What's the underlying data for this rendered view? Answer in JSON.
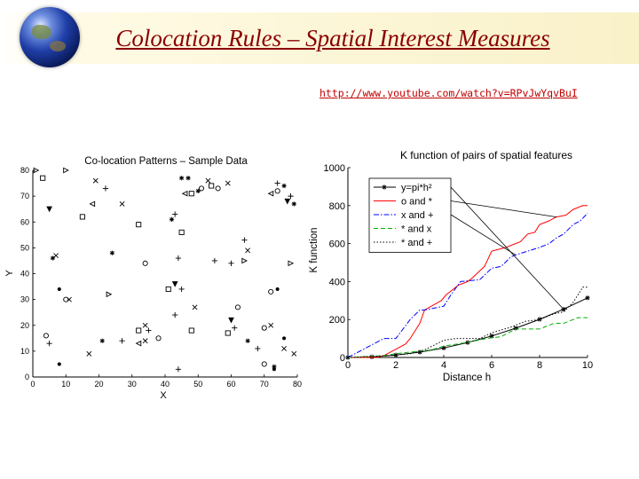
{
  "slide": {
    "title": "Colocation Rules – Spatial Interest Measures",
    "url": "http://www.youtube.com/watch?v=RPvJwYqvBuI"
  },
  "colors": {
    "title": "#8b0000",
    "link": "#c00000",
    "header_fade": "#f9f1c8"
  },
  "chart_data": [
    {
      "type": "scatter",
      "title": "Co-location Patterns – Sample Data",
      "xlabel": "X",
      "ylabel": "Y",
      "xlim": [
        0,
        80
      ],
      "ylim": [
        0,
        80
      ],
      "xticks": [
        "0",
        "10",
        "20",
        "30",
        "40",
        "50",
        "60",
        "70",
        "80"
      ],
      "yticks": [
        "0",
        "10",
        "20",
        "30",
        "40",
        "50",
        "60",
        "70",
        "80"
      ],
      "points": [
        {
          "x": 1,
          "y": 80,
          "m": "tri-r"
        },
        {
          "x": 3,
          "y": 77,
          "m": "sq"
        },
        {
          "x": 10,
          "y": 80,
          "m": "tri-r"
        },
        {
          "x": 5,
          "y": 65,
          "m": "tri-d"
        },
        {
          "x": 19,
          "y": 76,
          "m": "x"
        },
        {
          "x": 22,
          "y": 73,
          "m": "plus"
        },
        {
          "x": 18,
          "y": 67,
          "m": "tri-l"
        },
        {
          "x": 27,
          "y": 67,
          "m": "x"
        },
        {
          "x": 15,
          "y": 62,
          "m": "sq"
        },
        {
          "x": 32,
          "y": 59,
          "m": "sq"
        },
        {
          "x": 45,
          "y": 77,
          "m": "star"
        },
        {
          "x": 47,
          "y": 77,
          "m": "star"
        },
        {
          "x": 46,
          "y": 71,
          "m": "tri-l"
        },
        {
          "x": 48,
          "y": 71,
          "m": "sq"
        },
        {
          "x": 50,
          "y": 72,
          "m": "star"
        },
        {
          "x": 51,
          "y": 73,
          "m": "circ"
        },
        {
          "x": 56,
          "y": 73,
          "m": "circ"
        },
        {
          "x": 59,
          "y": 75,
          "m": "x"
        },
        {
          "x": 53,
          "y": 76,
          "m": "x"
        },
        {
          "x": 54,
          "y": 74,
          "m": "sq"
        },
        {
          "x": 74,
          "y": 75,
          "m": "plus"
        },
        {
          "x": 76,
          "y": 74,
          "m": "star"
        },
        {
          "x": 74,
          "y": 72,
          "m": "circ"
        },
        {
          "x": 72,
          "y": 71,
          "m": "tri-l"
        },
        {
          "x": 77,
          "y": 68,
          "m": "tri-d"
        },
        {
          "x": 79,
          "y": 67,
          "m": "star"
        },
        {
          "x": 78,
          "y": 70,
          "m": "plus"
        },
        {
          "x": 42,
          "y": 61,
          "m": "star"
        },
        {
          "x": 43,
          "y": 63,
          "m": "plus"
        },
        {
          "x": 45,
          "y": 56,
          "m": "sq"
        },
        {
          "x": 64,
          "y": 53,
          "m": "plus"
        },
        {
          "x": 65,
          "y": 49,
          "m": "x"
        },
        {
          "x": 60,
          "y": 44,
          "m": "plus"
        },
        {
          "x": 64,
          "y": 45,
          "m": "tri-r"
        },
        {
          "x": 7,
          "y": 47,
          "m": "x"
        },
        {
          "x": 6,
          "y": 46,
          "m": "star"
        },
        {
          "x": 24,
          "y": 48,
          "m": "star"
        },
        {
          "x": 34,
          "y": 44,
          "m": "circ"
        },
        {
          "x": 44,
          "y": 46,
          "m": "plus"
        },
        {
          "x": 55,
          "y": 45,
          "m": "plus"
        },
        {
          "x": 78,
          "y": 44,
          "m": "tri-r"
        },
        {
          "x": 41,
          "y": 34,
          "m": "sq"
        },
        {
          "x": 43,
          "y": 36,
          "m": "tri-d"
        },
        {
          "x": 45,
          "y": 34,
          "m": "plus"
        },
        {
          "x": 8,
          "y": 34,
          "m": "dot"
        },
        {
          "x": 10,
          "y": 30,
          "m": "circ"
        },
        {
          "x": 11,
          "y": 30,
          "m": "x"
        },
        {
          "x": 23,
          "y": 32,
          "m": "tri-r"
        },
        {
          "x": 72,
          "y": 33,
          "m": "circ"
        },
        {
          "x": 74,
          "y": 34,
          "m": "dot"
        },
        {
          "x": 62,
          "y": 27,
          "m": "circ"
        },
        {
          "x": 60,
          "y": 22,
          "m": "tri-d"
        },
        {
          "x": 49,
          "y": 27,
          "m": "x"
        },
        {
          "x": 43,
          "y": 24,
          "m": "plus"
        },
        {
          "x": 34,
          "y": 20,
          "m": "x"
        },
        {
          "x": 32,
          "y": 18,
          "m": "sq"
        },
        {
          "x": 35,
          "y": 18,
          "m": "plus"
        },
        {
          "x": 32,
          "y": 13,
          "m": "tri-l"
        },
        {
          "x": 34,
          "y": 14,
          "m": "x"
        },
        {
          "x": 38,
          "y": 15,
          "m": "circ"
        },
        {
          "x": 48,
          "y": 18,
          "m": "sq"
        },
        {
          "x": 59,
          "y": 17,
          "m": "sq"
        },
        {
          "x": 61,
          "y": 19,
          "m": "plus"
        },
        {
          "x": 70,
          "y": 19,
          "m": "circ"
        },
        {
          "x": 72,
          "y": 20,
          "m": "x"
        },
        {
          "x": 76,
          "y": 15,
          "m": "dot"
        },
        {
          "x": 65,
          "y": 14,
          "m": "star"
        },
        {
          "x": 68,
          "y": 11,
          "m": "plus"
        },
        {
          "x": 4,
          "y": 16,
          "m": "circ"
        },
        {
          "x": 5,
          "y": 13,
          "m": "plus"
        },
        {
          "x": 8,
          "y": 5,
          "m": "dot"
        },
        {
          "x": 17,
          "y": 9,
          "m": "x"
        },
        {
          "x": 21,
          "y": 14,
          "m": "star"
        },
        {
          "x": 27,
          "y": 14,
          "m": "plus"
        },
        {
          "x": 44,
          "y": 3,
          "m": "plus"
        },
        {
          "x": 70,
          "y": 5,
          "m": "circ"
        },
        {
          "x": 73,
          "y": 4,
          "m": "star"
        },
        {
          "x": 76,
          "y": 11,
          "m": "x"
        },
        {
          "x": 79,
          "y": 9,
          "m": "x"
        },
        {
          "x": 73,
          "y": 3,
          "m": "dot"
        }
      ]
    },
    {
      "type": "line",
      "title": "K function of pairs of spatial features",
      "xlabel": "Distance h",
      "ylabel": "K function",
      "xlim": [
        0,
        10
      ],
      "ylim": [
        0,
        1000
      ],
      "xticks": [
        "0",
        "2",
        "4",
        "6",
        "8",
        "10"
      ],
      "yticks": [
        "0",
        "200",
        "400",
        "600",
        "800",
        "1000"
      ],
      "legend_position": "top-left",
      "series": [
        {
          "name": "y=pi*h²",
          "color": "#000000",
          "dash": "solid",
          "marker": "star",
          "x": [
            0,
            1,
            2,
            3,
            4,
            5,
            6,
            7,
            8,
            9,
            10
          ],
          "y": [
            0,
            3,
            13,
            28,
            50,
            79,
            113,
            154,
            201,
            254,
            314
          ]
        },
        {
          "name": "o and *",
          "color": "#ff0000",
          "dash": "solid",
          "marker": "none",
          "x": [
            0,
            1.2,
            1.5,
            2.4,
            2.6,
            3.0,
            3.2,
            3.9,
            4.1,
            4.4,
            4.6,
            5.0,
            5.2,
            5.7,
            6.0,
            6.3,
            6.6,
            7.2,
            7.5,
            7.8,
            8.0,
            8.4,
            8.7,
            9.1,
            9.4,
            9.8,
            10
          ],
          "y": [
            0,
            0,
            10,
            70,
            100,
            180,
            250,
            300,
            330,
            360,
            380,
            400,
            420,
            480,
            560,
            570,
            580,
            610,
            650,
            660,
            700,
            720,
            740,
            750,
            780,
            800,
            800
          ]
        },
        {
          "name": "x and +",
          "color": "#0000ff",
          "dash": "dashdot",
          "marker": "none",
          "x": [
            0,
            1.5,
            2.0,
            2.6,
            3.0,
            3.2,
            4.0,
            4.3,
            4.7,
            5.5,
            6.0,
            6.4,
            6.8,
            7.0,
            7.5,
            8.0,
            8.4,
            8.7,
            9.0,
            9.4,
            9.7,
            10
          ],
          "y": [
            0,
            100,
            100,
            200,
            250,
            250,
            270,
            330,
            400,
            410,
            470,
            480,
            530,
            540,
            560,
            580,
            600,
            630,
            650,
            700,
            720,
            760
          ]
        },
        {
          "name": "* and x",
          "color": "#00b000",
          "dash": "dashed",
          "marker": "none",
          "x": [
            0,
            1.5,
            2.0,
            3.5,
            4.0,
            5.0,
            5.8,
            6.4,
            7.0,
            8.0,
            8.6,
            9.0,
            9.6,
            10
          ],
          "y": [
            0,
            10,
            20,
            40,
            60,
            80,
            100,
            110,
            150,
            150,
            180,
            180,
            210,
            210
          ]
        },
        {
          "name": "* and +",
          "color": "#000000",
          "dash": "dotted",
          "marker": "none",
          "x": [
            0,
            1.8,
            2.6,
            3.2,
            4.0,
            4.5,
            5.5,
            6.0,
            6.8,
            7.4,
            8.0,
            8.6,
            9.0,
            9.4,
            9.8,
            10
          ],
          "y": [
            0,
            10,
            20,
            40,
            90,
            100,
            100,
            130,
            160,
            190,
            200,
            230,
            240,
            290,
            370,
            370
          ]
        }
      ]
    }
  ]
}
